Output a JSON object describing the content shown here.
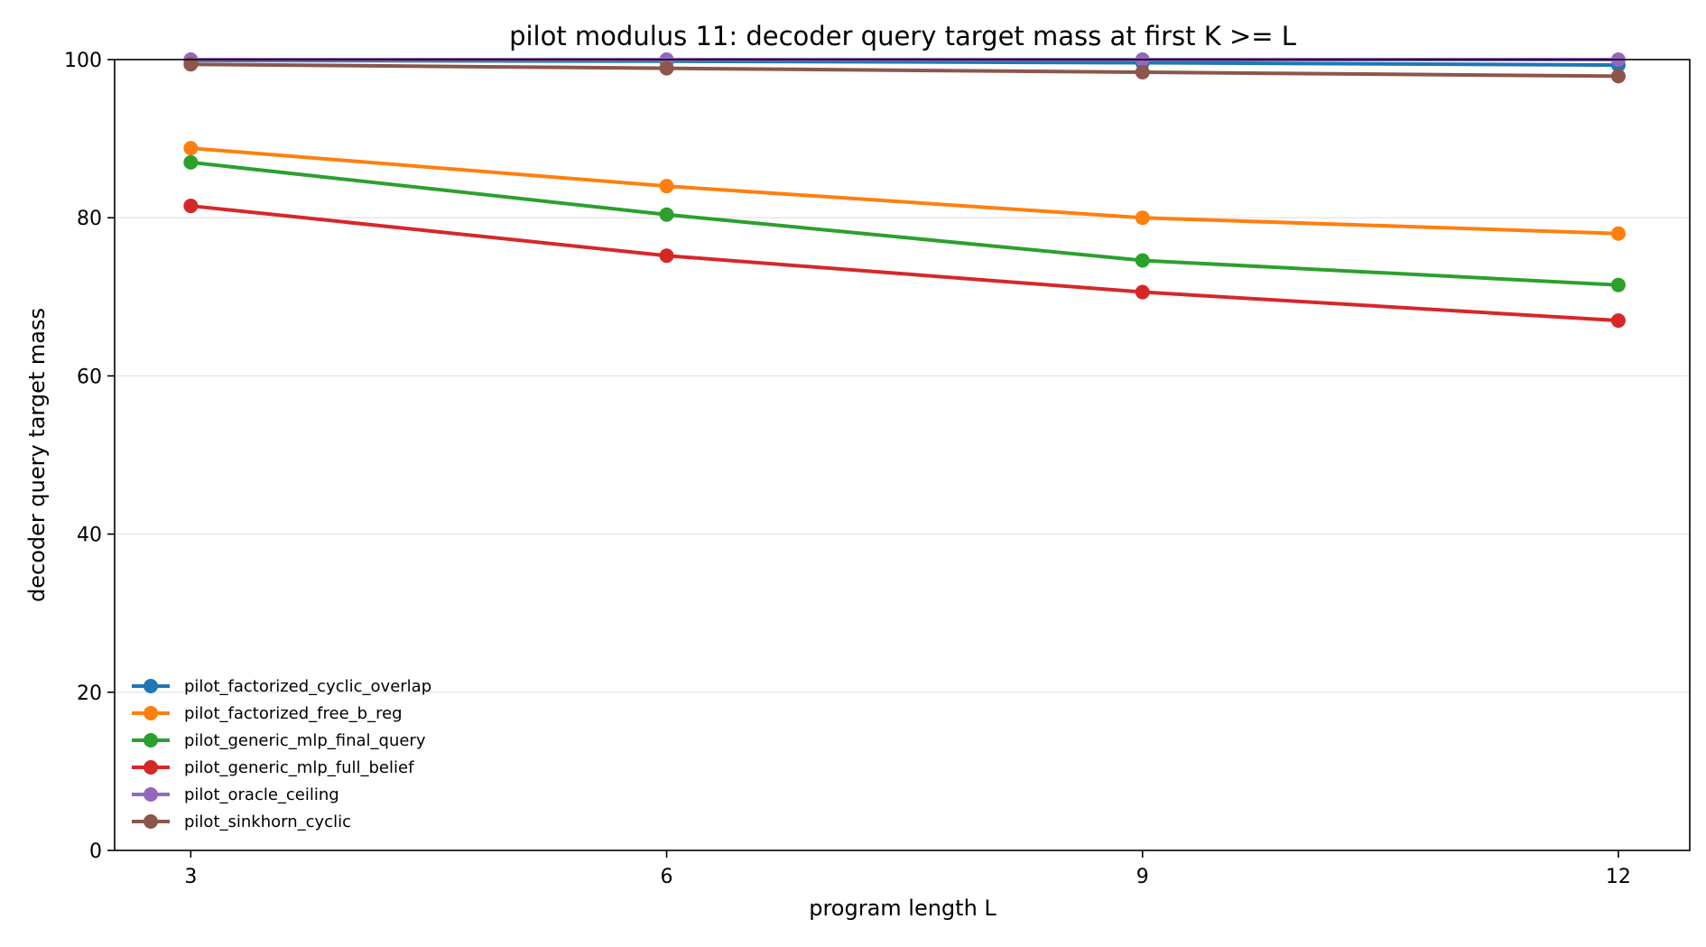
{
  "chart_data": {
    "type": "line",
    "title": "pilot modulus 11: decoder query target mass at first K >= L",
    "xlabel": "program length L",
    "ylabel": "decoder query target mass",
    "x": [
      3,
      6,
      9,
      12
    ],
    "x_ticks": [
      "3",
      "6",
      "9",
      "12"
    ],
    "xlim": [
      2.52,
      12.45
    ],
    "ylim": [
      0,
      100
    ],
    "y_ticks": [
      "0",
      "20",
      "40",
      "60",
      "80",
      "100"
    ],
    "y_tick_values": [
      0,
      20,
      40,
      60,
      80,
      100
    ],
    "grid": "horizontal",
    "legend_position": "lower-left",
    "series": [
      {
        "name": "pilot_factorized_cyclic_overlap",
        "color": "#1f77b4",
        "values": [
          99.9,
          99.8,
          99.6,
          99.3
        ]
      },
      {
        "name": "pilot_factorized_free_b_reg",
        "color": "#ff7f0e",
        "values": [
          88.8,
          84.0,
          80.0,
          78.0
        ]
      },
      {
        "name": "pilot_generic_mlp_final_query",
        "color": "#2ca02c",
        "values": [
          87.0,
          80.4,
          74.6,
          71.5
        ]
      },
      {
        "name": "pilot_generic_mlp_full_belief",
        "color": "#d62728",
        "values": [
          81.5,
          75.2,
          70.6,
          67.0
        ]
      },
      {
        "name": "pilot_oracle_ceiling",
        "color": "#9467bd",
        "values": [
          100.0,
          100.0,
          100.0,
          100.0
        ]
      },
      {
        "name": "pilot_sinkhorn_cyclic",
        "color": "#8c564b",
        "values": [
          99.4,
          98.9,
          98.4,
          97.9
        ]
      }
    ]
  }
}
